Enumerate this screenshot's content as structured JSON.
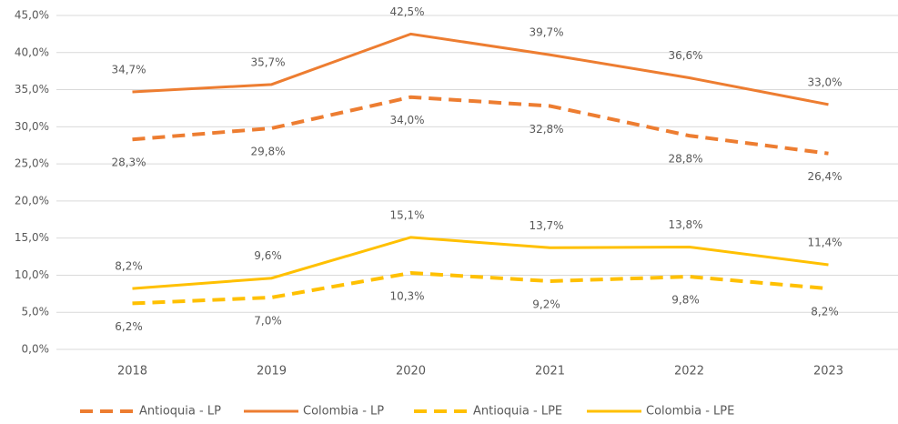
{
  "chart_data": {
    "type": "line",
    "categories": [
      "2018",
      "2019",
      "2020",
      "2021",
      "2022",
      "2023"
    ],
    "series": [
      {
        "name": "Antioquia - LP",
        "color": "#ED7D31",
        "dashed": true,
        "values": [
          28.3,
          29.8,
          34.0,
          32.8,
          28.8,
          26.4
        ],
        "value_labels": [
          "28,3%",
          "29,8%",
          "34,0%",
          "32,8%",
          "28,8%",
          "26,4%"
        ]
      },
      {
        "name": "Colombia - LP",
        "color": "#ED7D31",
        "dashed": false,
        "values": [
          34.7,
          35.7,
          42.5,
          39.7,
          36.6,
          33.0
        ],
        "value_labels": [
          "34,7%",
          "35,7%",
          "42,5%",
          "39,7%",
          "36,6%",
          "33,0%"
        ]
      },
      {
        "name": "Antioquia - LPE",
        "color": "#FFC000",
        "dashed": true,
        "values": [
          6.2,
          7.0,
          10.3,
          9.2,
          9.8,
          8.2
        ],
        "value_labels": [
          "6,2%",
          "7,0%",
          "10,3%",
          "9,2%",
          "9,8%",
          "8,2%"
        ]
      },
      {
        "name": "Colombia - LPE",
        "color": "#FFC000",
        "dashed": false,
        "values": [
          8.2,
          9.6,
          15.1,
          13.7,
          13.8,
          11.4
        ],
        "value_labels": [
          "8,2%",
          "9,6%",
          "15,1%",
          "13,7%",
          "13,8%",
          "11,4%"
        ]
      }
    ],
    "ylim": [
      0,
      45
    ],
    "yticks": [
      {
        "value": 0,
        "label": "0,0%"
      },
      {
        "value": 5,
        "label": "5,0%"
      },
      {
        "value": 10,
        "label": "10,0%"
      },
      {
        "value": 15,
        "label": "15,0%"
      },
      {
        "value": 20,
        "label": "20,0%"
      },
      {
        "value": 25,
        "label": "25,0%"
      },
      {
        "value": 30,
        "label": "30,0%"
      },
      {
        "value": 35,
        "label": "35,0%"
      },
      {
        "value": 40,
        "label": "40,0%"
      },
      {
        "value": 45,
        "label": "45,0%"
      }
    ],
    "grid": true,
    "legend": "bottom"
  }
}
